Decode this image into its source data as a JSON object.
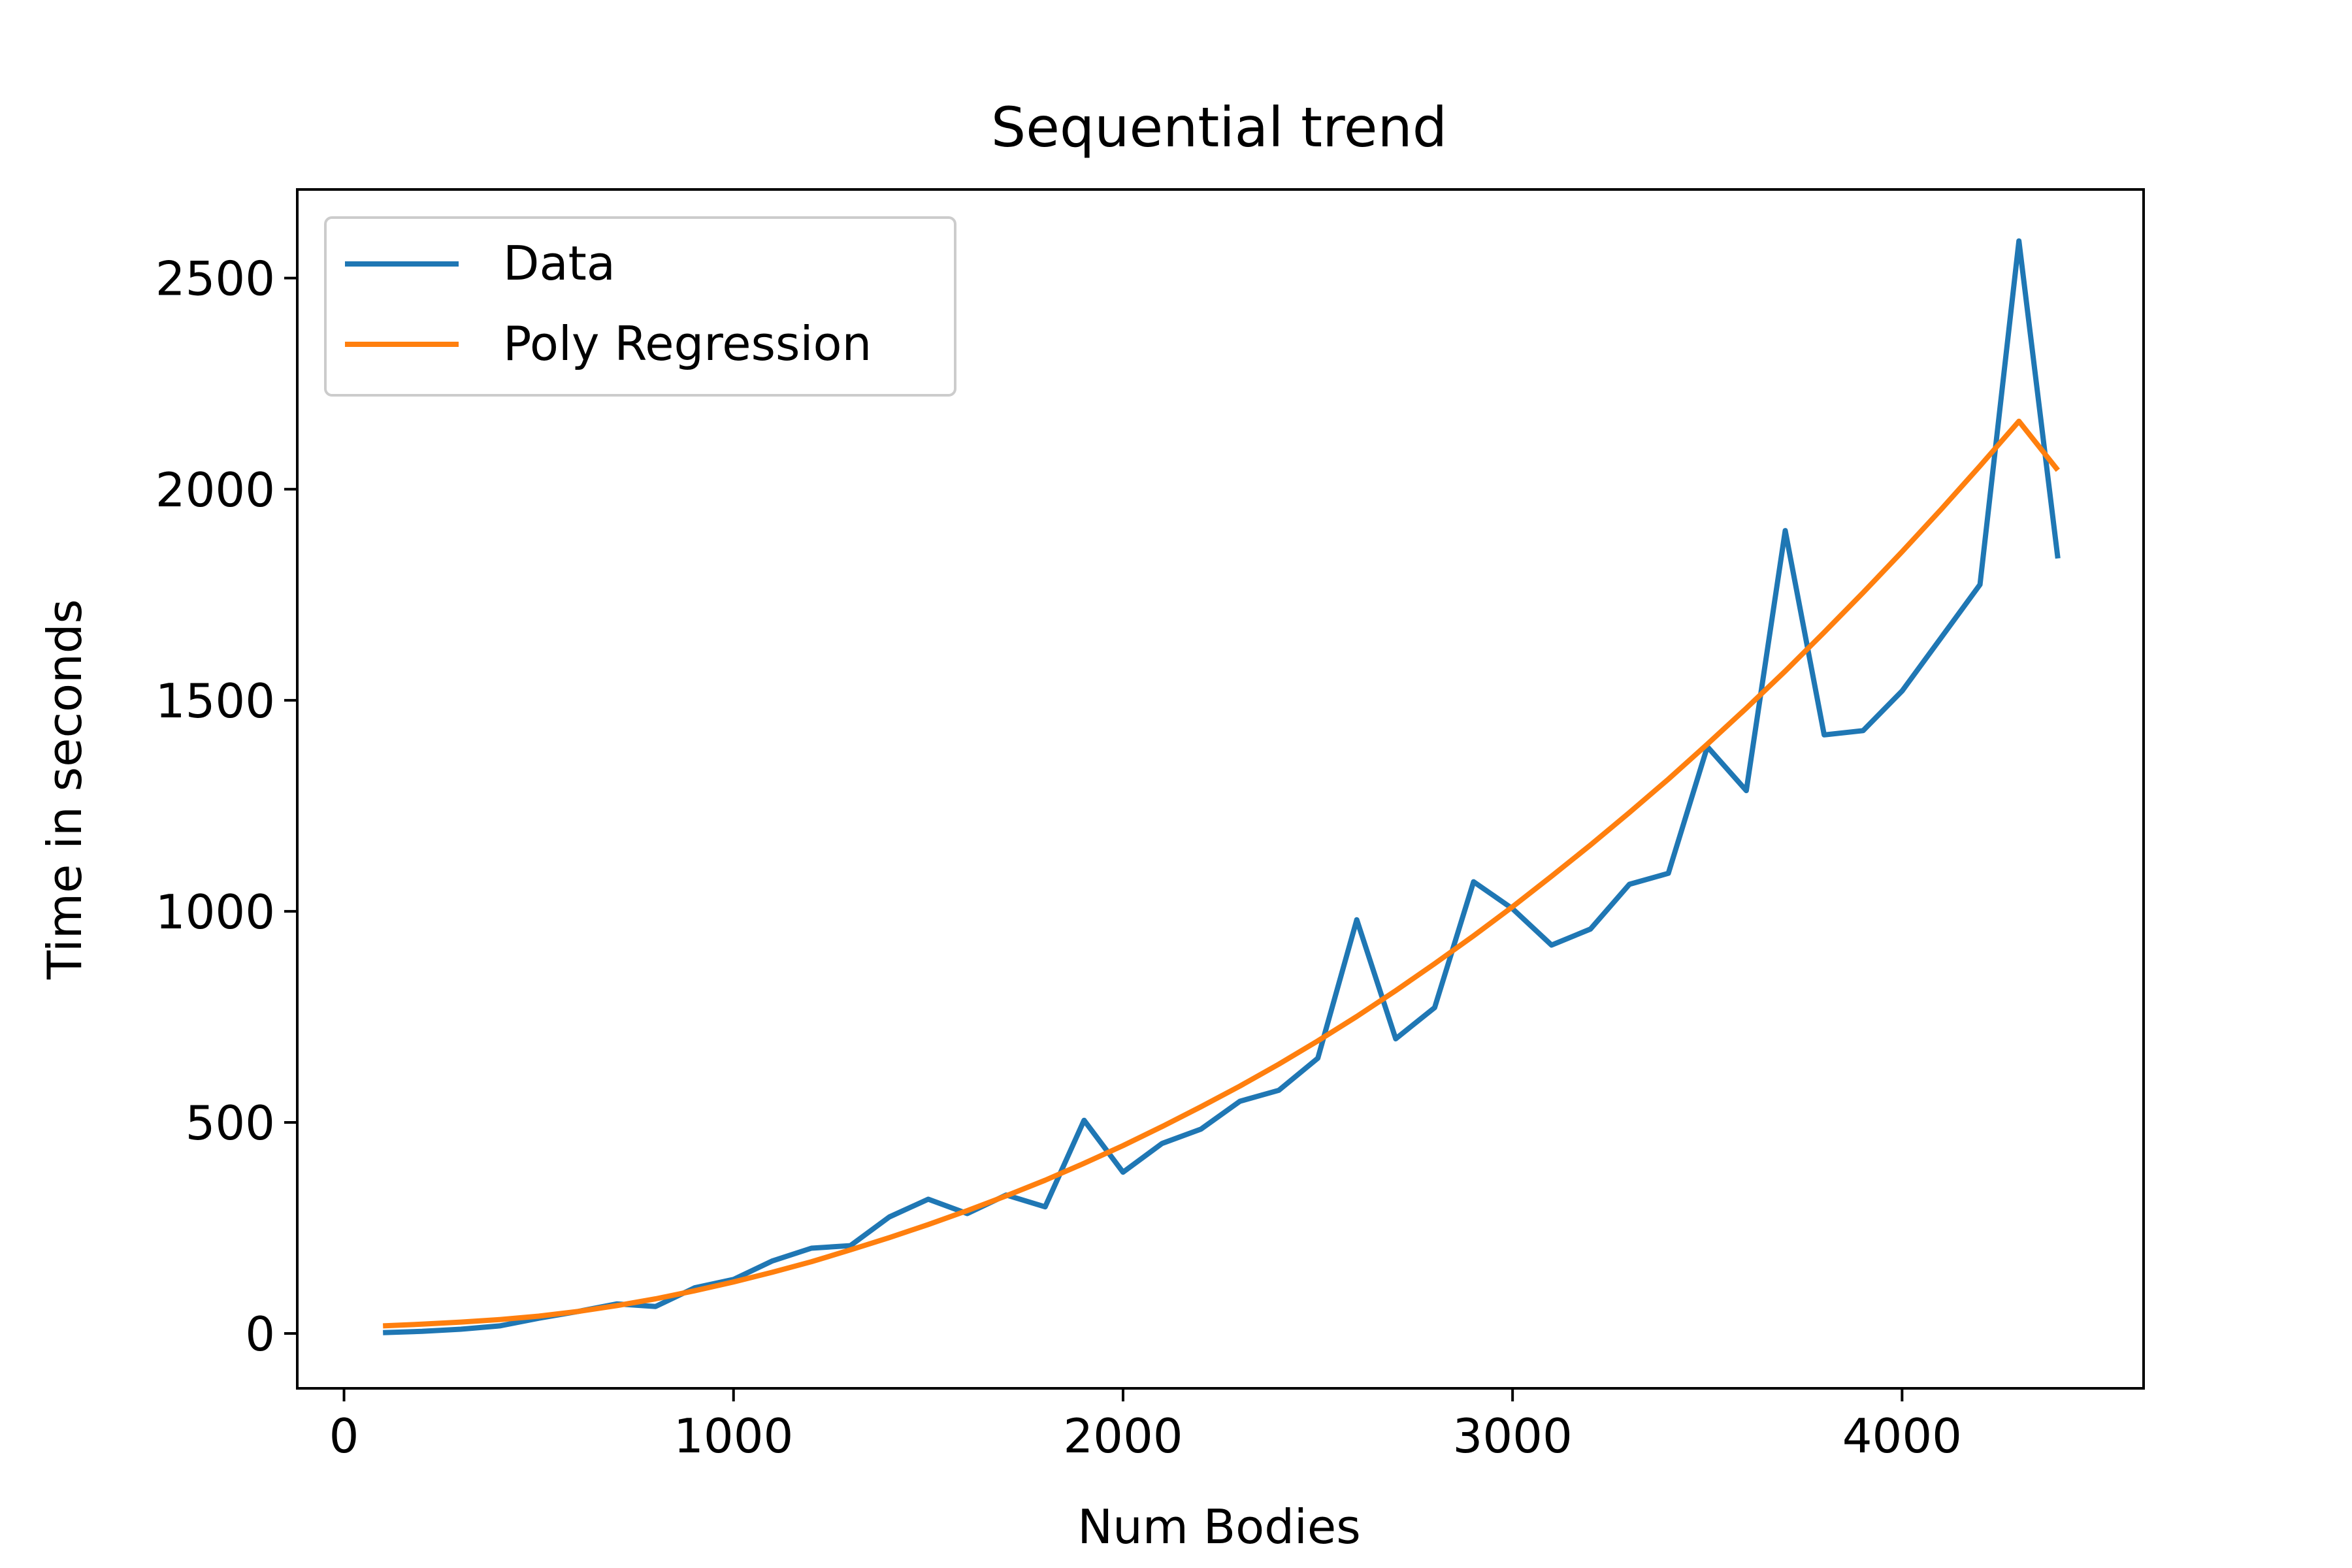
{
  "chart_data": {
    "type": "line",
    "title": "Sequential trend",
    "xlabel": "Num Bodies",
    "ylabel": "Time in seconds",
    "xlim": [
      -120,
      4620
    ],
    "ylim": [
      -130,
      2710
    ],
    "xticks": [
      0,
      1000,
      2000,
      3000,
      4000
    ],
    "xtick_labels": [
      "0",
      "1000",
      "2000",
      "3000",
      "4000"
    ],
    "yticks": [
      0,
      500,
      1000,
      1500,
      2000,
      2500
    ],
    "ytick_labels": [
      "0",
      "500",
      "1000",
      "1500",
      "2000",
      "2500"
    ],
    "grid": false,
    "legend": {
      "placement": "top-left",
      "entries": [
        "Data",
        "Poly Regression"
      ]
    },
    "series": [
      {
        "name": "Data",
        "color": "#1f77b4",
        "x": [
          100,
          200,
          300,
          400,
          500,
          600,
          700,
          800,
          900,
          1000,
          1100,
          1200,
          1300,
          1400,
          1500,
          1600,
          1700,
          1800,
          1900,
          2000,
          2100,
          2200,
          2300,
          2400,
          2500,
          2600,
          2700,
          2800,
          2900,
          3000,
          3100,
          3200,
          3300,
          3400,
          3500,
          3600,
          3700,
          3800,
          3900,
          4000,
          4100,
          4200,
          4300,
          4400
        ],
        "y": [
          2,
          5,
          10,
          18,
          36,
          52,
          70,
          64,
          108,
          128,
          172,
          202,
          208,
          276,
          318,
          284,
          328,
          300,
          505,
          382,
          450,
          484,
          550,
          576,
          652,
          980,
          698,
          772,
          1070,
          1006,
          920,
          958,
          1064,
          1090,
          1390,
          1286,
          1902,
          1418,
          1428,
          1522,
          1648,
          1774,
          2588,
          1836
        ]
      },
      {
        "name": "Poly Regression",
        "color": "#ff7f0e",
        "x": [
          100,
          200,
          300,
          400,
          500,
          600,
          700,
          800,
          900,
          1000,
          1100,
          1200,
          1300,
          1400,
          1500,
          1600,
          1700,
          1800,
          1900,
          2000,
          2100,
          2200,
          2300,
          2400,
          2500,
          2600,
          2700,
          2800,
          2900,
          3000,
          3100,
          3200,
          3300,
          3400,
          3500,
          3600,
          3700,
          3800,
          3900,
          4000,
          4100,
          4200,
          4300,
          4400
        ],
        "y": [
          18,
          22,
          27,
          33,
          41,
          52,
          66,
          82,
          101,
          122,
          145,
          170,
          198,
          227,
          258,
          291,
          326,
          363,
          403,
          445,
          490,
          537,
          586,
          638,
          693,
          751,
          812,
          876,
          942,
          1011,
          1083,
          1157,
          1234,
          1313,
          1396,
          1481,
          1569,
          1661,
          1755,
          1852,
          1952,
          2055,
          2161,
          2045
        ]
      }
    ]
  }
}
